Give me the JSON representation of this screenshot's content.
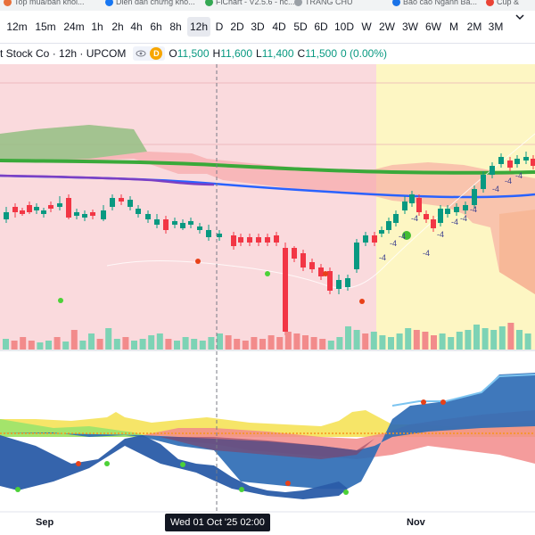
{
  "bookmarks": [
    {
      "label": "Top mua/bán khối...",
      "color": "#e8703a"
    },
    {
      "label": "Diễn đàn chứng khó...",
      "color": "#1877f2"
    },
    {
      "label": "FlChart - V2.5.6 - hc...",
      "color": "#34a853"
    },
    {
      "label": "TRANG CHỦ",
      "color": "#9aa0a6"
    },
    {
      "label": "Báo cáo Ngành Bả...",
      "color": "#1a73e8"
    },
    {
      "label": "Cúp &",
      "color": "#ea4335"
    }
  ],
  "toolbar": {
    "timeframes": [
      {
        "label": "12m",
        "active": false
      },
      {
        "label": "15m",
        "active": false
      },
      {
        "label": "24m",
        "active": false
      },
      {
        "label": "1h",
        "active": false
      },
      {
        "label": "2h",
        "active": false
      },
      {
        "label": "4h",
        "active": false
      },
      {
        "label": "6h",
        "active": false
      },
      {
        "label": "8h",
        "active": false
      },
      {
        "label": "12h",
        "active": true
      },
      {
        "label": "D",
        "active": false
      },
      {
        "label": "2D",
        "active": false
      },
      {
        "label": "3D",
        "active": false
      },
      {
        "label": "4D",
        "active": false
      },
      {
        "label": "5D",
        "active": false
      },
      {
        "label": "6D",
        "active": false
      },
      {
        "label": "10D",
        "active": false
      },
      {
        "label": "W",
        "active": false
      },
      {
        "label": "2W",
        "active": false
      },
      {
        "label": "3W",
        "active": false
      },
      {
        "label": "6W",
        "active": false
      },
      {
        "label": "M",
        "active": false
      },
      {
        "label": "2M",
        "active": false
      },
      {
        "label": "3M",
        "active": false
      }
    ]
  },
  "legend": {
    "symbol": "t Stock Co · 12h · UPCOM",
    "badge": "D",
    "o_key": "O",
    "o": "11,500",
    "h_key": "H",
    "h": "11,600",
    "l_key": "L",
    "l": "11,400",
    "c_key": "C",
    "c": "11,500",
    "change": "0 (0.00%)"
  },
  "crosshair_label": "Wed 01 Oct '25   02:00",
  "x_axis": {
    "sep": "Sep",
    "nov": "Nov"
  },
  "colors": {
    "up": "#089981",
    "down": "#f23645",
    "pink_zone": "#fadadd",
    "yellow_zone": "#fdf6c3",
    "green_ma": "#3aa93a",
    "purple_ma": "#7b3fc4",
    "blue_ma": "#2962ff"
  },
  "annotations": [
    "-4",
    "-4",
    "-4",
    "-4",
    "-4",
    "-4",
    "-4",
    "-4",
    "-4",
    "-4",
    "-4",
    "-4"
  ]
}
